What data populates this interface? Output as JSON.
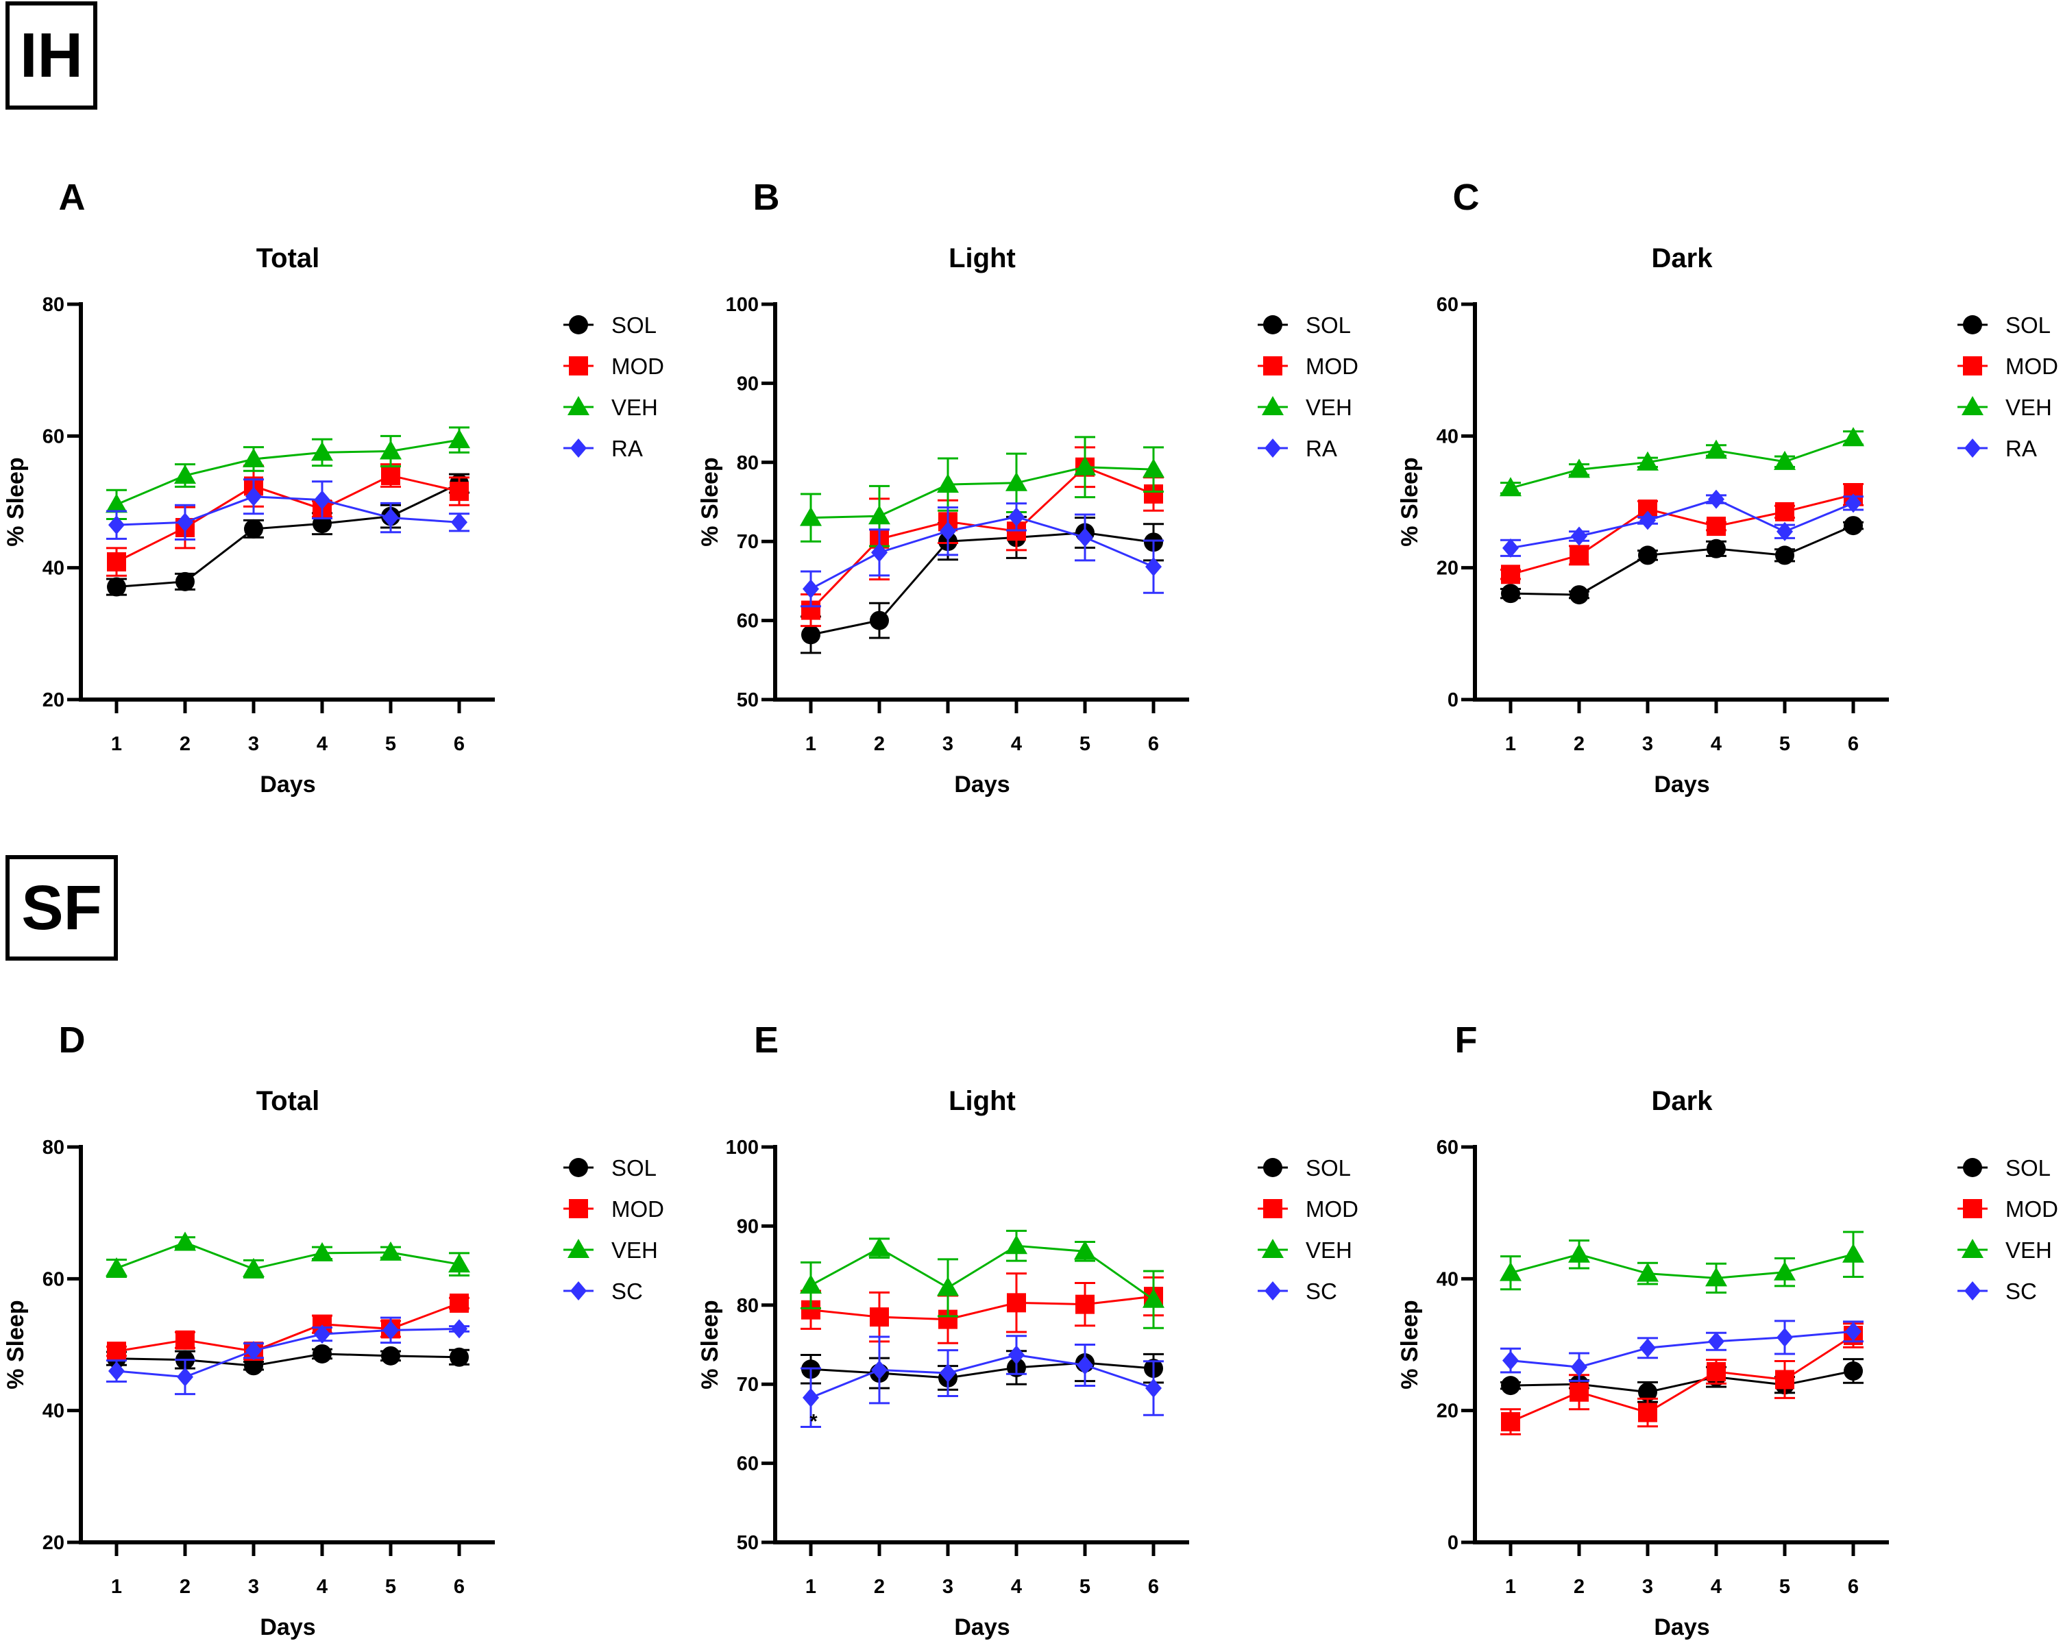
{
  "sections": [
    {
      "label": "IH"
    },
    {
      "label": "SF"
    }
  ],
  "chart_data": [
    {
      "panel": "A",
      "type": "line",
      "title": "Total",
      "xlabel": "Days",
      "ylabel": "% Sleep",
      "x": [
        1,
        2,
        3,
        4,
        5,
        6
      ],
      "ylim": [
        20,
        80
      ],
      "yticks": [
        20,
        40,
        60,
        80
      ],
      "grid": false,
      "legend": "right",
      "series": [
        {
          "name": "SOL",
          "color": "#000000",
          "marker": "circle",
          "values": [
            37.1,
            37.9,
            45.9,
            46.7,
            47.8,
            52.8
          ],
          "sem": [
            1.2,
            1.2,
            1.3,
            1.6,
            1.7,
            1.4
          ]
        },
        {
          "name": "MOD",
          "color": "#ff0000",
          "marker": "square",
          "values": [
            40.9,
            46.1,
            52.4,
            48.9,
            54.0,
            51.6
          ],
          "sem": [
            2.1,
            3.1,
            3.1,
            1.2,
            1.7,
            2.1
          ]
        },
        {
          "name": "VEH",
          "color": "#00b400",
          "marker": "triangle",
          "values": [
            49.6,
            54.0,
            56.5,
            57.5,
            57.7,
            59.4
          ],
          "sem": [
            2.2,
            1.7,
            1.8,
            2.0,
            2.3,
            1.9
          ]
        },
        {
          "name": "RA",
          "color": "#3232ff",
          "marker": "diamond",
          "values": [
            46.5,
            46.9,
            50.8,
            50.3,
            47.6,
            46.9
          ],
          "sem": [
            2.1,
            2.6,
            2.6,
            2.8,
            2.2,
            1.3
          ]
        }
      ]
    },
    {
      "panel": "B",
      "type": "line",
      "title": "Light",
      "xlabel": "Days",
      "ylabel": "% Sleep",
      "x": [
        1,
        2,
        3,
        4,
        5,
        6
      ],
      "ylim": [
        50,
        100
      ],
      "yticks": [
        50,
        60,
        70,
        80,
        90,
        100
      ],
      "grid": false,
      "legend": "right",
      "series": [
        {
          "name": "SOL",
          "color": "#000000",
          "marker": "circle",
          "values": [
            58.2,
            60.0,
            70.0,
            70.5,
            71.1,
            69.9
          ],
          "sem": [
            2.3,
            2.2,
            2.3,
            2.6,
            1.9,
            2.3
          ]
        },
        {
          "name": "MOD",
          "color": "#ff0000",
          "marker": "square",
          "values": [
            61.3,
            70.3,
            72.5,
            71.3,
            79.4,
            76.0
          ],
          "sem": [
            2.0,
            5.1,
            2.7,
            2.4,
            2.5,
            2.1
          ]
        },
        {
          "name": "VEH",
          "color": "#00b400",
          "marker": "triangle",
          "values": [
            73.0,
            73.2,
            77.2,
            77.4,
            79.4,
            79.1
          ],
          "sem": [
            3.0,
            3.8,
            3.3,
            3.7,
            3.8,
            2.8
          ]
        },
        {
          "name": "RA",
          "color": "#3232ff",
          "marker": "diamond",
          "values": [
            64.0,
            68.6,
            71.3,
            73.1,
            70.5,
            66.8
          ],
          "sem": [
            2.2,
            2.9,
            3.0,
            1.7,
            2.9,
            3.3
          ]
        }
      ]
    },
    {
      "panel": "C",
      "type": "line",
      "title": "Dark",
      "xlabel": "Days",
      "ylabel": "% Sleep",
      "x": [
        1,
        2,
        3,
        4,
        5,
        6
      ],
      "ylim": [
        0,
        60
      ],
      "yticks": [
        0,
        20,
        40,
        60
      ],
      "grid": false,
      "legend": "right",
      "series": [
        {
          "name": "SOL",
          "color": "#000000",
          "marker": "circle",
          "values": [
            16.1,
            15.9,
            21.9,
            22.9,
            21.9,
            26.4
          ],
          "sem": [
            0.7,
            0.5,
            0.7,
            1.1,
            0.9,
            0.5
          ]
        },
        {
          "name": "MOD",
          "color": "#ff0000",
          "marker": "square",
          "values": [
            19.0,
            21.9,
            28.9,
            26.3,
            28.5,
            31.1
          ],
          "sem": [
            0.7,
            1.4,
            1.2,
            0.6,
            0.9,
            1.6
          ]
        },
        {
          "name": "VEH",
          "color": "#00b400",
          "marker": "triangle",
          "values": [
            32.1,
            34.9,
            36.0,
            37.8,
            36.1,
            39.7
          ],
          "sem": [
            0.8,
            0.8,
            0.7,
            0.8,
            0.8,
            1.0
          ]
        },
        {
          "name": "RA",
          "color": "#3232ff",
          "marker": "diamond",
          "values": [
            23.0,
            24.8,
            27.2,
            30.4,
            25.5,
            29.8
          ],
          "sem": [
            1.2,
            0.7,
            0.5,
            0.6,
            1.0,
            1.0
          ]
        }
      ]
    },
    {
      "panel": "D",
      "type": "line",
      "title": "Total",
      "xlabel": "Days",
      "ylabel": "% Sleep",
      "x": [
        1,
        2,
        3,
        4,
        5,
        6
      ],
      "ylim": [
        20,
        80
      ],
      "yticks": [
        20,
        40,
        60,
        80
      ],
      "grid": false,
      "legend": "right",
      "series": [
        {
          "name": "SOL",
          "color": "#000000",
          "marker": "circle",
          "values": [
            47.9,
            47.7,
            46.8,
            48.6,
            48.3,
            48.1
          ],
          "sem": [
            1.0,
            1.3,
            0.6,
            0.7,
            0.7,
            1.1
          ]
        },
        {
          "name": "MOD",
          "color": "#ff0000",
          "marker": "square",
          "values": [
            49.0,
            50.7,
            49.0,
            53.1,
            52.4,
            56.3
          ],
          "sem": [
            0.7,
            1.2,
            1.2,
            1.3,
            1.2,
            0.8
          ]
        },
        {
          "name": "VEH",
          "color": "#00b400",
          "marker": "triangle",
          "values": [
            61.6,
            65.5,
            61.5,
            63.9,
            64.0,
            62.2
          ],
          "sem": [
            1.3,
            0.8,
            1.3,
            0.9,
            0.8,
            1.7
          ]
        },
        {
          "name": "SC",
          "color": "#3232ff",
          "marker": "diamond",
          "values": [
            46.0,
            45.1,
            49.1,
            51.6,
            52.2,
            52.4
          ],
          "sem": [
            1.6,
            2.6,
            1.1,
            1.0,
            1.9,
            0.4
          ]
        }
      ]
    },
    {
      "panel": "E",
      "type": "line",
      "title": "Light",
      "xlabel": "Days",
      "ylabel": "% Sleep",
      "x": [
        1,
        2,
        3,
        4,
        5,
        6
      ],
      "ylim": [
        50,
        100
      ],
      "yticks": [
        50,
        60,
        70,
        80,
        90,
        100
      ],
      "grid": false,
      "legend": "right",
      "series": [
        {
          "name": "SOL",
          "color": "#000000",
          "marker": "circle",
          "values": [
            71.9,
            71.4,
            70.8,
            72.1,
            72.7,
            72.0
          ],
          "sem": [
            1.8,
            1.9,
            1.5,
            2.1,
            2.3,
            1.8
          ]
        },
        {
          "name": "MOD",
          "color": "#ff0000",
          "marker": "square",
          "values": [
            79.4,
            78.5,
            78.2,
            80.3,
            80.1,
            81.1
          ],
          "sem": [
            2.4,
            3.1,
            3.0,
            3.7,
            2.7,
            2.4
          ]
        },
        {
          "name": "VEH",
          "color": "#00b400",
          "marker": "triangle",
          "values": [
            82.5,
            87.2,
            82.2,
            87.5,
            86.8,
            80.7
          ],
          "sem": [
            2.9,
            1.2,
            3.6,
            1.9,
            1.2,
            3.6
          ]
        },
        {
          "name": "SC",
          "color": "#3232ff",
          "marker": "diamond",
          "values": [
            68.3,
            71.8,
            71.4,
            73.7,
            72.4,
            69.5
          ],
          "sem": [
            3.7,
            4.2,
            2.9,
            2.4,
            2.6,
            3.4
          ]
        }
      ],
      "annotations": [
        {
          "text": "*",
          "series": "SC",
          "x": 1
        }
      ]
    },
    {
      "panel": "F",
      "type": "line",
      "title": "Dark",
      "xlabel": "Days",
      "ylabel": "% Sleep",
      "x": [
        1,
        2,
        3,
        4,
        5,
        6
      ],
      "ylim": [
        0,
        60
      ],
      "yticks": [
        0,
        20,
        40,
        60
      ],
      "grid": false,
      "legend": "right",
      "series": [
        {
          "name": "SOL",
          "color": "#000000",
          "marker": "circle",
          "values": [
            23.8,
            24.0,
            22.8,
            25.1,
            23.9,
            26.0
          ],
          "sem": [
            0.5,
            0.6,
            1.5,
            1.5,
            1.2,
            1.8
          ]
        },
        {
          "name": "MOD",
          "color": "#ff0000",
          "marker": "square",
          "values": [
            18.3,
            22.8,
            19.7,
            25.9,
            24.7,
            31.4
          ],
          "sem": [
            1.9,
            2.6,
            2.1,
            1.8,
            2.8,
            1.8
          ]
        },
        {
          "name": "VEH",
          "color": "#00b400",
          "marker": "triangle",
          "values": [
            40.9,
            43.7,
            40.8,
            40.1,
            41.0,
            43.7
          ],
          "sem": [
            2.5,
            2.1,
            1.6,
            2.2,
            2.1,
            3.4
          ]
        },
        {
          "name": "SC",
          "color": "#3232ff",
          "marker": "diamond",
          "values": [
            27.6,
            26.6,
            29.5,
            30.5,
            31.1,
            32.0
          ],
          "sem": [
            1.8,
            2.1,
            1.5,
            1.3,
            2.5,
            1.5
          ]
        }
      ]
    }
  ]
}
